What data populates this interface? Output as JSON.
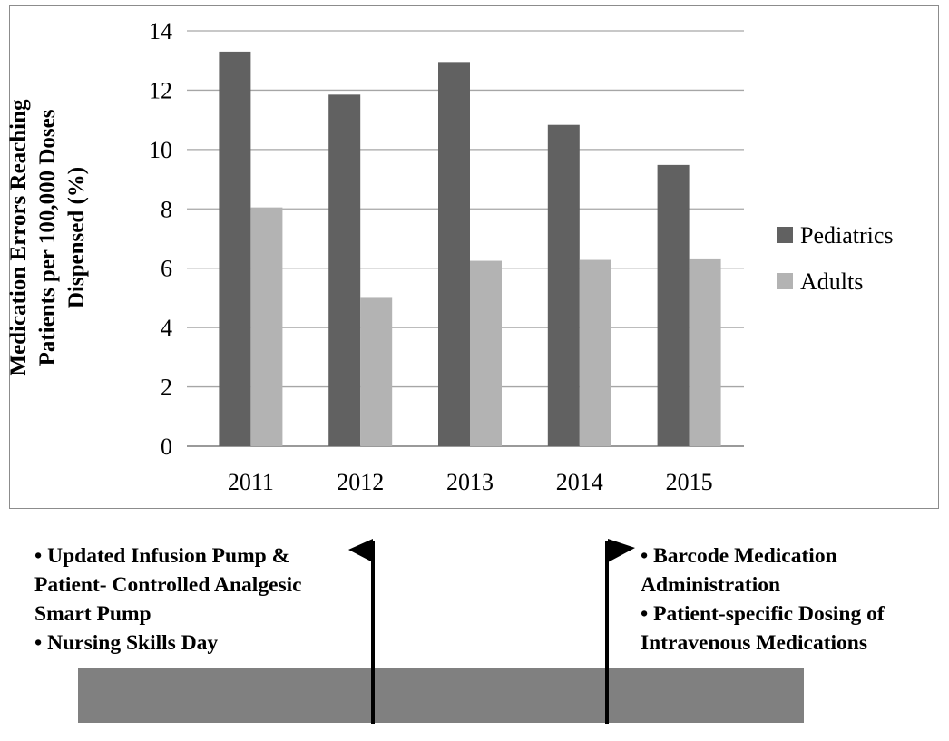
{
  "chart_data": {
    "type": "bar",
    "categories": [
      "2011",
      "2012",
      "2013",
      "2014",
      "2015"
    ],
    "series": [
      {
        "name": "Pediatrics",
        "values": [
          13.3,
          11.85,
          12.95,
          10.83,
          9.48
        ],
        "color": "#616161"
      },
      {
        "name": "Adults",
        "values": [
          8.05,
          5.0,
          6.25,
          6.28,
          6.3
        ],
        "color": "#b3b3b3"
      }
    ],
    "ylabel_lines": [
      "Medication Errors Reaching",
      "Patients per 100,000 Doses",
      "Dispensed (%)"
    ],
    "ylim": [
      0,
      14
    ],
    "yticks": [
      0,
      2,
      4,
      6,
      8,
      10,
      12,
      14
    ],
    "grid": true,
    "legend_position": "right",
    "gridline_color": "#a6a6a6"
  },
  "annotations": {
    "left_flag_items": [
      "• Updated Infusion Pump &",
      "Patient- Controlled Analgesic",
      "Smart Pump",
      "• Nursing Skills Day"
    ],
    "right_flag_items": [
      "• Barcode Medication",
      "Administration",
      "• Patient-specific Dosing of",
      "Intravenous Medications"
    ]
  }
}
